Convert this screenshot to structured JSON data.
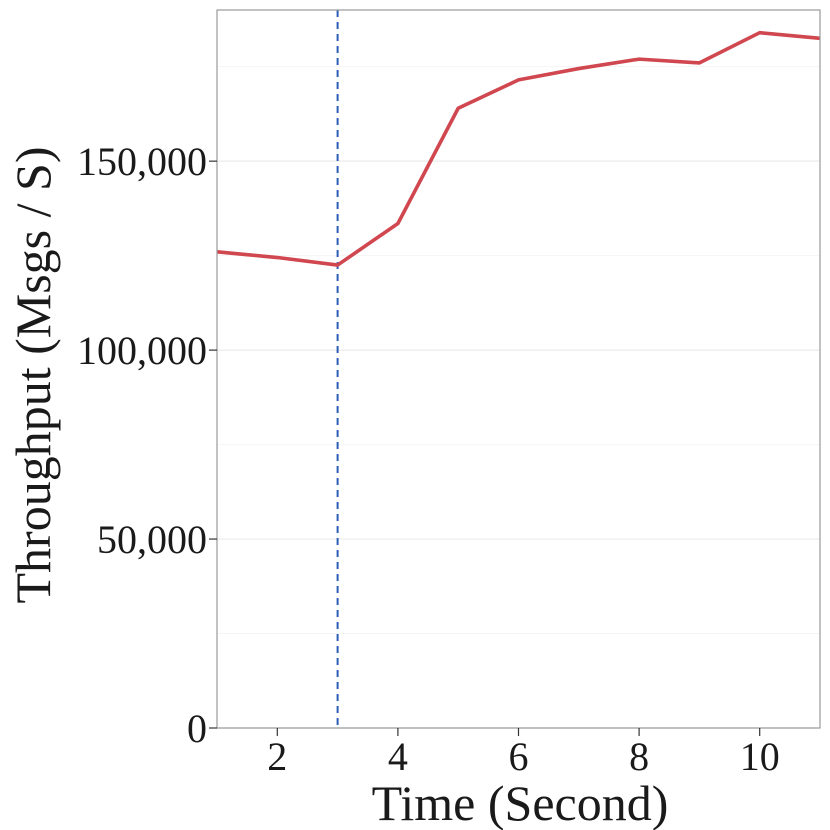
{
  "chart_data": {
    "type": "line",
    "title": "",
    "xlabel": "Time (Second)",
    "ylabel": "Throughput (Msgs / S)",
    "xlim": [
      1,
      11
    ],
    "ylim": [
      0,
      190000
    ],
    "x_ticks": [
      2,
      4,
      6,
      8,
      10
    ],
    "y_ticks": [
      0,
      50000,
      100000,
      150000
    ],
    "y_tick_labels": [
      "0",
      "50,000",
      "100,000",
      "150,000"
    ],
    "y_minor_ticks": [
      25000,
      75000,
      125000,
      175000
    ],
    "grid": true,
    "legend": "none",
    "vline": {
      "x": 3,
      "style": "dashed",
      "color": "#2b5cb8"
    },
    "series": [
      {
        "color": "#d0474f",
        "x": [
          1,
          2,
          3,
          4,
          5,
          6,
          7,
          8,
          9,
          10,
          11
        ],
        "y": [
          126000,
          124500,
          122500,
          133500,
          164000,
          171500,
          174500,
          177000,
          176000,
          184000,
          182500
        ]
      }
    ]
  },
  "colors": {
    "line": "#d0474f",
    "vline": "#2b5cb8",
    "grid": "#ebebeb",
    "panel_border": "#9a9a9a"
  }
}
